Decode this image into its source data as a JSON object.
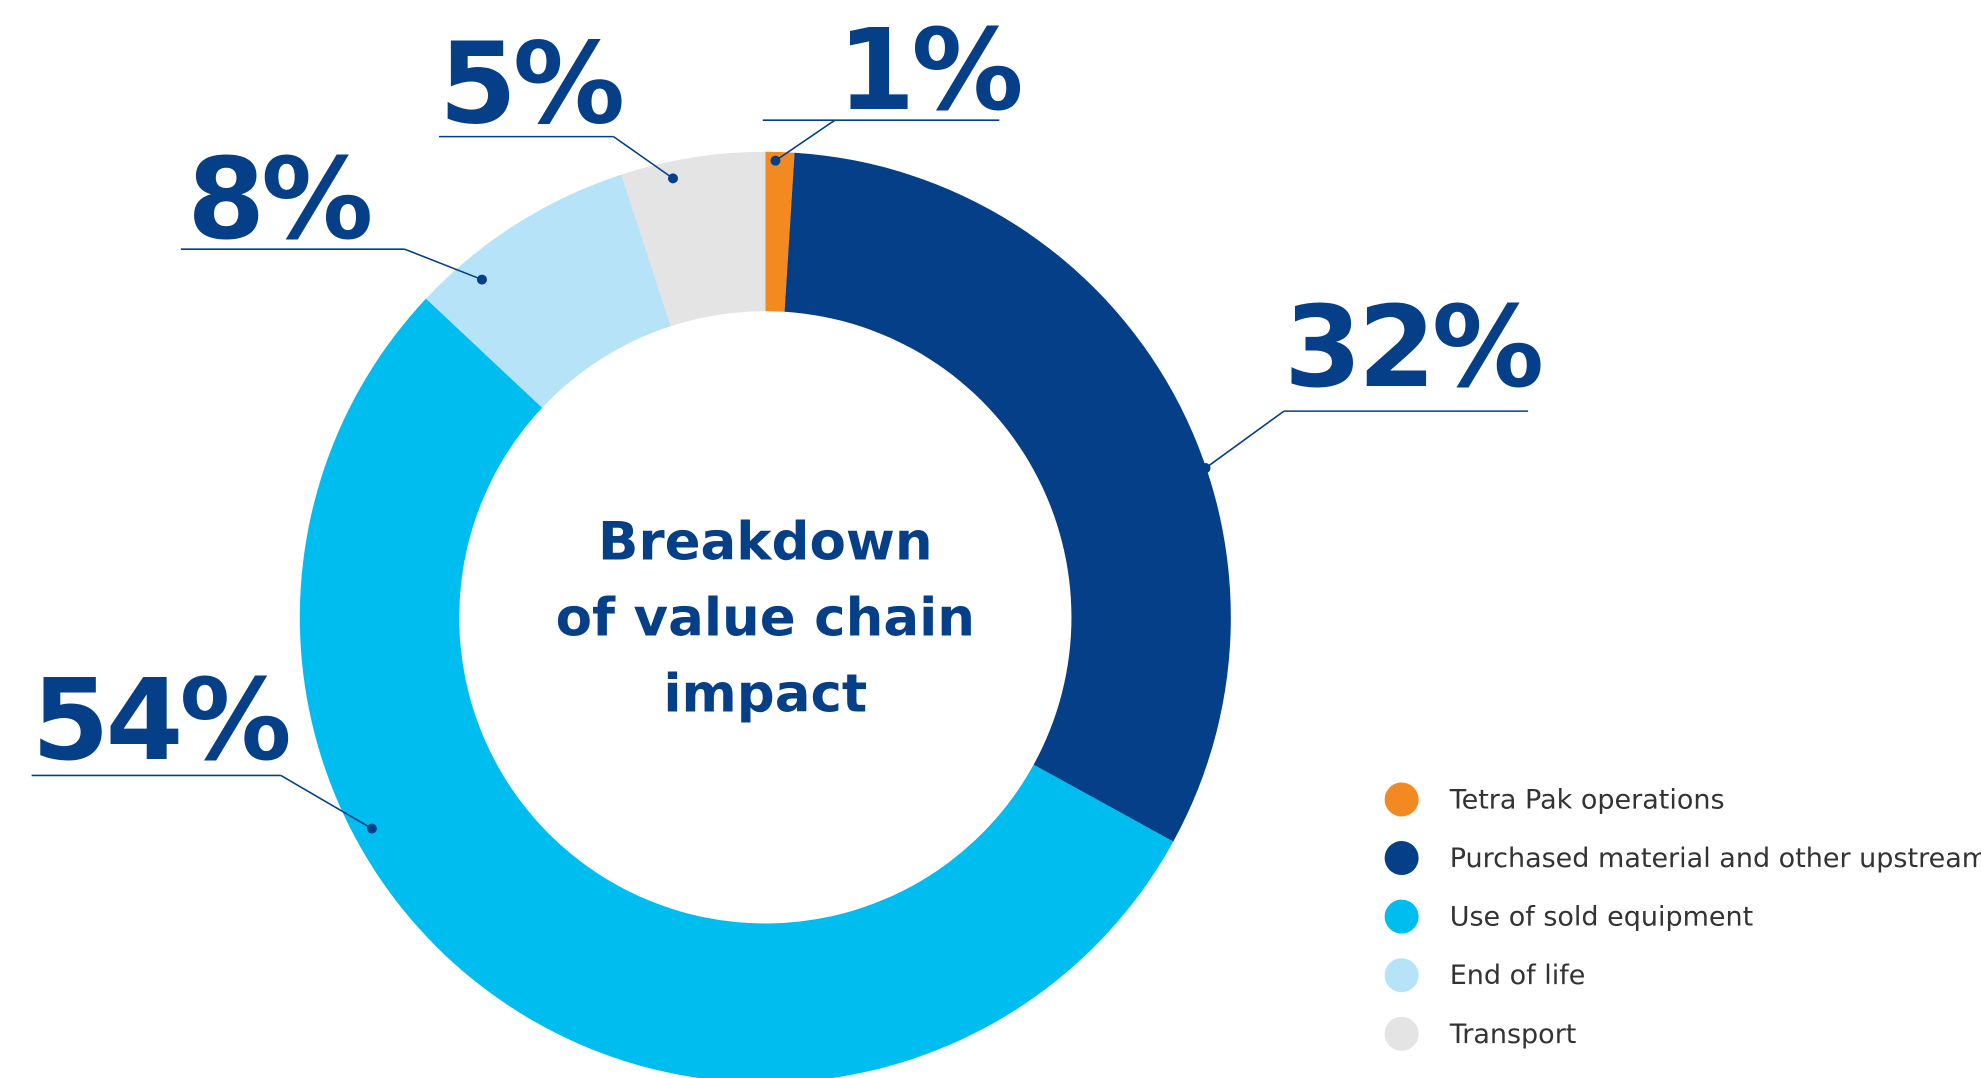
{
  "chart_data": {
    "type": "donut",
    "title": [
      "Breakdown",
      "of value chain",
      "impact"
    ],
    "categories": [
      "Tetra Pak operations",
      "Purchased material and other upstream",
      "Use of sold equipment",
      "End of life",
      "Transport"
    ],
    "values": [
      1,
      32,
      54,
      8,
      5
    ],
    "value_labels": [
      "1%",
      "32%",
      "54%",
      "8%",
      "5%"
    ],
    "colors": [
      "#f28a21",
      "#043f87",
      "#00bdf0",
      "#b6e3f8",
      "#e4e4e4"
    ],
    "legend": "bottom-right"
  }
}
